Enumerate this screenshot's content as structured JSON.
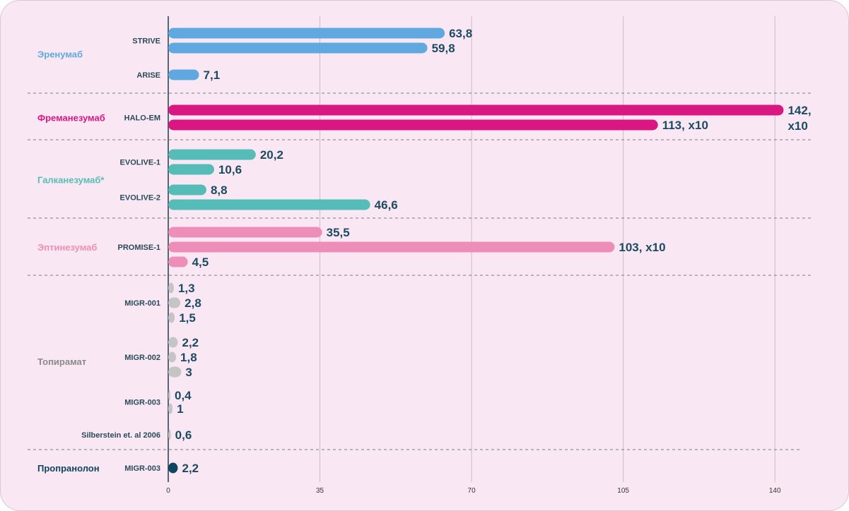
{
  "chart_data": {
    "type": "bar",
    "orientation": "horizontal",
    "xlim": [
      0,
      145
    ],
    "x_ticks": [
      "0",
      "35",
      "70",
      "105",
      "140"
    ],
    "grid": true,
    "groups": [
      {
        "drug": "Эренумаб",
        "color": "#5fa9e0",
        "studies": [
          {
            "name": "STRIVE",
            "bars": [
              {
                "value": 63.8,
                "label": "63,8"
              },
              {
                "value": 59.8,
                "label": "59,8"
              }
            ]
          },
          {
            "name": "ARISE",
            "bars": [
              {
                "value": 7.1,
                "label": "7,1"
              }
            ]
          }
        ]
      },
      {
        "drug": "Фреманезумаб",
        "color": "#d91682",
        "studies": [
          {
            "name": "HALO-EM",
            "bars": [
              {
                "value": 142,
                "label": "142,\nx10"
              },
              {
                "value": 113,
                "label": "113, x10"
              }
            ]
          }
        ]
      },
      {
        "drug": "Галканезумаб*",
        "color": "#55bcb8",
        "studies": [
          {
            "name": "EVOLIVE-1",
            "bars": [
              {
                "value": 20.2,
                "label": "20,2"
              },
              {
                "value": 10.6,
                "label": "10,6"
              }
            ]
          },
          {
            "name": "EVOLIVE-2",
            "bars": [
              {
                "value": 8.8,
                "label": "8,8"
              },
              {
                "value": 46.6,
                "label": "46,6"
              }
            ]
          }
        ]
      },
      {
        "drug": "Эптинезумаб",
        "color": "#ef8db9",
        "studies": [
          {
            "name": "PROMISE-1",
            "bars": [
              {
                "value": 35.5,
                "label": "35,5"
              },
              {
                "value": 103,
                "label": "103, x10"
              },
              {
                "value": 4.5,
                "label": "4,5"
              }
            ]
          }
        ]
      },
      {
        "drug": "Топирамат",
        "color": "#c5c5c5",
        "label_color": "#8a8a8a",
        "studies": [
          {
            "name": "MIGR-001",
            "bars": [
              {
                "value": 1.3,
                "label": "1,3"
              },
              {
                "value": 2.8,
                "label": "2,8"
              },
              {
                "value": 1.5,
                "label": "1,5"
              }
            ]
          },
          {
            "name": "MIGR-002",
            "bars": [
              {
                "value": 2.2,
                "label": "2,2"
              },
              {
                "value": 1.8,
                "label": "1,8"
              },
              {
                "value": 3,
                "label": "3"
              }
            ]
          },
          {
            "name": "MIGR-003",
            "bars": [
              {
                "value": 0.4,
                "label": "0,4"
              },
              {
                "value": 1,
                "label": "1"
              }
            ]
          },
          {
            "name": "Silberstein et. al 2006",
            "bars": [
              {
                "value": 0.6,
                "label": "0,6"
              }
            ]
          }
        ]
      },
      {
        "drug": "Пропранолон",
        "color": "#0f4560",
        "studies": [
          {
            "name": "MIGR-003",
            "bars": [
              {
                "value": 2.2,
                "label": "2,2"
              }
            ]
          }
        ]
      }
    ]
  }
}
